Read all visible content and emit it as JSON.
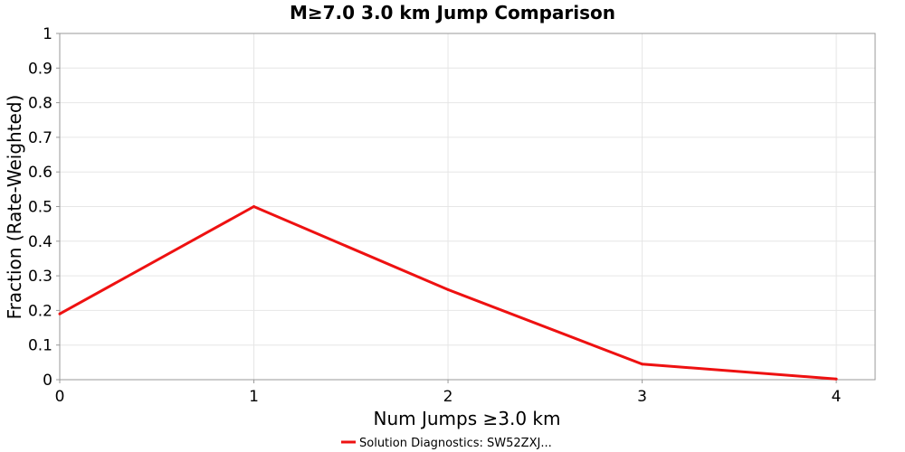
{
  "chart_data": {
    "type": "line",
    "title": "M≥7.0 3.0 km Jump Comparison",
    "xlabel": "Num Jumps ≥3.0 km",
    "ylabel": "Fraction (Rate-Weighted)",
    "xlim": [
      0,
      4.2
    ],
    "ylim": [
      0,
      1
    ],
    "xticks": [
      "0",
      "1",
      "2",
      "3",
      "4"
    ],
    "yticks": [
      "0",
      "0.1",
      "0.2",
      "0.3",
      "0.4",
      "0.5",
      "0.6",
      "0.7",
      "0.8",
      "0.9",
      "1"
    ],
    "grid": true,
    "legend_position": "bottom-center",
    "series": [
      {
        "name": "Solution Diagnostics: SW52ZXJ...",
        "color": "#ee1111",
        "x": [
          0,
          1,
          2,
          3,
          4
        ],
        "y": [
          0.19,
          0.5,
          0.26,
          0.045,
          0.002
        ]
      }
    ]
  }
}
